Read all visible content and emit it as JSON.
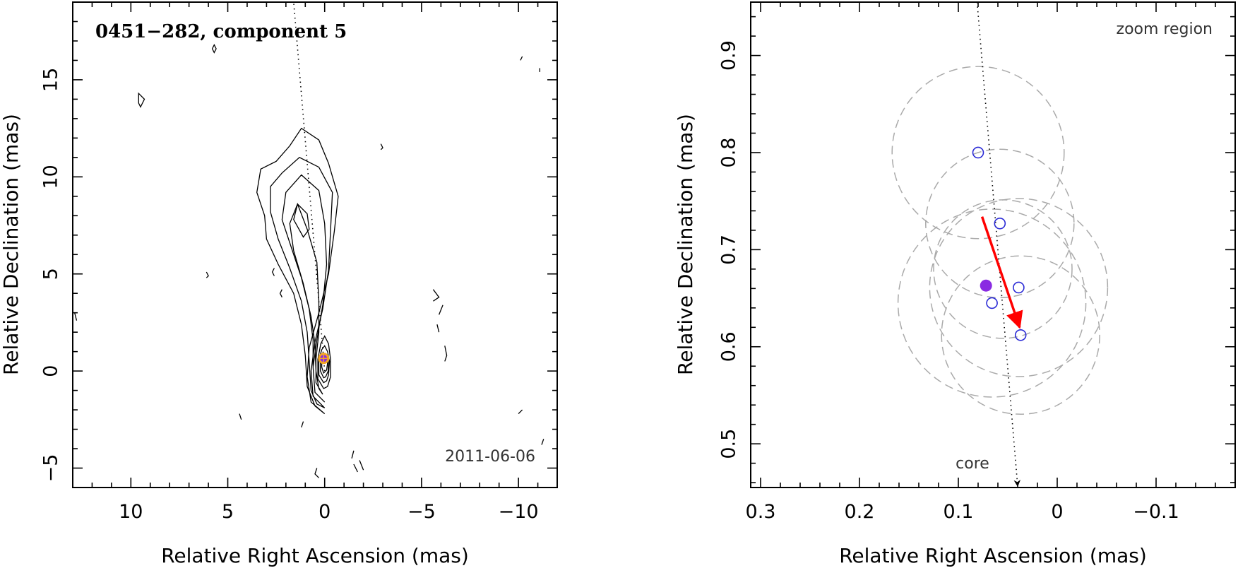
{
  "chart_data": [
    {
      "type": "contour",
      "title": "0451−282, component 5",
      "epoch": "2011-06-06",
      "xlabel": "Relative Right Ascension (mas)",
      "ylabel": "Relative Declination (mas)",
      "xlim": [
        13,
        -12
      ],
      "ylim": [
        -6,
        19
      ],
      "x_axis_reversed": true,
      "xticks": [
        10,
        5,
        0,
        -5,
        -10
      ],
      "xtick_labels": [
        "10",
        "5",
        "0",
        "−5",
        "−10"
      ],
      "yticks": [
        -5,
        0,
        5,
        10,
        15
      ],
      "ytick_labels": [
        "−5",
        "0",
        "5",
        "10",
        "15"
      ],
      "jet_axis": [
        [
          0,
          0
        ],
        [
          1.6,
          19
        ]
      ],
      "component_marker": {
        "x": 0.05,
        "y": 0.65,
        "colors": [
          "#f5a623",
          "#8a2be2"
        ]
      },
      "contours": [
        [
          [
            0.0,
            -2.2
          ],
          [
            0.7,
            -1.6
          ],
          [
            0.9,
            -0.3
          ],
          [
            0.8,
            1.2
          ],
          [
            0.3,
            3.0
          ],
          [
            -0.2,
            5.0
          ],
          [
            -0.5,
            7.2
          ],
          [
            -0.7,
            9.0
          ],
          [
            -0.2,
            10.7
          ],
          [
            0.3,
            11.9
          ],
          [
            1.2,
            12.5
          ],
          [
            1.8,
            11.6
          ],
          [
            2.5,
            10.8
          ],
          [
            3.3,
            10.4
          ],
          [
            3.5,
            9.2
          ],
          [
            3.1,
            8.0
          ],
          [
            3.0,
            6.8
          ],
          [
            2.4,
            5.5
          ],
          [
            1.6,
            4.0
          ],
          [
            1.2,
            2.4
          ],
          [
            1.0,
            0.8
          ],
          [
            0.9,
            -0.8
          ],
          [
            0.5,
            -1.8
          ]
        ],
        [
          [
            0.0,
            -1.9
          ],
          [
            0.6,
            -1.3
          ],
          [
            0.7,
            0.0
          ],
          [
            0.5,
            1.5
          ],
          [
            0.1,
            3.2
          ],
          [
            -0.2,
            5.2
          ],
          [
            -0.3,
            7.2
          ],
          [
            -0.4,
            9.2
          ],
          [
            0.3,
            10.5
          ],
          [
            1.3,
            11.0
          ],
          [
            2.2,
            10.2
          ],
          [
            2.8,
            9.5
          ],
          [
            2.8,
            8.2
          ],
          [
            2.4,
            6.8
          ],
          [
            1.8,
            5.3
          ],
          [
            1.2,
            3.6
          ],
          [
            0.9,
            2.0
          ],
          [
            0.8,
            0.5
          ],
          [
            0.7,
            -1.0
          ],
          [
            0.4,
            -1.7
          ]
        ],
        [
          [
            0.0,
            -1.6
          ],
          [
            0.5,
            -1.1
          ],
          [
            0.6,
            0.2
          ],
          [
            0.4,
            1.6
          ],
          [
            0.1,
            3.4
          ],
          [
            -0.1,
            5.5
          ],
          [
            0.0,
            7.6
          ],
          [
            0.3,
            9.3
          ],
          [
            1.2,
            10.1
          ],
          [
            2.0,
            9.2
          ],
          [
            2.2,
            7.8
          ],
          [
            1.7,
            6.3
          ],
          [
            1.2,
            4.8
          ],
          [
            0.8,
            3.2
          ],
          [
            0.6,
            1.6
          ],
          [
            0.6,
            0.2
          ],
          [
            0.5,
            -1.1
          ]
        ],
        [
          [
            0.1,
            -1.2
          ],
          [
            0.45,
            -0.6
          ],
          [
            0.45,
            0.6
          ],
          [
            0.3,
            2.0
          ],
          [
            0.3,
            3.6
          ],
          [
            0.4,
            5.6
          ],
          [
            0.9,
            7.3
          ],
          [
            1.4,
            8.6
          ],
          [
            1.8,
            7.6
          ],
          [
            1.6,
            6.2
          ],
          [
            1.1,
            4.5
          ],
          [
            0.7,
            2.8
          ],
          [
            0.5,
            1.4
          ],
          [
            0.45,
            0.0
          ],
          [
            0.3,
            -0.9
          ]
        ],
        [
          [
            1.1,
            6.9
          ],
          [
            1.6,
            7.8
          ],
          [
            1.4,
            8.6
          ],
          [
            0.9,
            8.1
          ],
          [
            0.8,
            7.3
          ]
        ],
        [
          [
            0.05,
            -0.9
          ],
          [
            0.35,
            -0.4
          ],
          [
            0.35,
            0.6
          ],
          [
            0.2,
            1.4
          ],
          [
            0.0,
            1.8
          ],
          [
            -0.2,
            1.4
          ],
          [
            -0.3,
            0.6
          ],
          [
            -0.3,
            -0.3
          ],
          [
            -0.15,
            -0.8
          ]
        ],
        [
          [
            0.05,
            -0.6
          ],
          [
            0.3,
            -0.2
          ],
          [
            0.3,
            0.6
          ],
          [
            0.15,
            1.1
          ],
          [
            0.0,
            1.3
          ],
          [
            -0.15,
            1.0
          ],
          [
            -0.25,
            0.5
          ],
          [
            -0.2,
            -0.2
          ],
          [
            -0.1,
            -0.5
          ]
        ],
        [
          [
            0.05,
            -0.35
          ],
          [
            0.22,
            0.0
          ],
          [
            0.22,
            0.6
          ],
          [
            0.1,
            0.9
          ],
          [
            -0.05,
            0.9
          ],
          [
            -0.2,
            0.6
          ],
          [
            -0.18,
            0.0
          ],
          [
            -0.05,
            -0.3
          ]
        ],
        [
          [
            0.05,
            -0.1
          ],
          [
            0.15,
            0.2
          ],
          [
            0.15,
            0.6
          ],
          [
            0.05,
            0.75
          ],
          [
            -0.1,
            0.7
          ],
          [
            -0.15,
            0.4
          ],
          [
            -0.1,
            0.05
          ]
        ],
        [
          [
            9.6,
            14.3
          ],
          [
            9.3,
            14.0
          ],
          [
            9.5,
            13.6
          ],
          [
            9.6,
            13.8
          ]
        ],
        [
          [
            5.7,
            16.8
          ],
          [
            5.8,
            16.6
          ],
          [
            5.7,
            16.4
          ],
          [
            5.6,
            16.6
          ]
        ],
        [
          [
            -10.2,
            16.2
          ],
          [
            -10.1,
            16.0
          ]
        ],
        [
          [
            -11.1,
            15.6
          ],
          [
            -11.1,
            15.4
          ]
        ],
        [
          [
            -2.9,
            11.7
          ],
          [
            -3.0,
            11.5
          ],
          [
            -2.9,
            11.4
          ]
        ],
        [
          [
            6.1,
            5.1
          ],
          [
            6.0,
            4.9
          ],
          [
            6.1,
            4.8
          ]
        ],
        [
          [
            2.6,
            5.3
          ],
          [
            2.7,
            5.1
          ],
          [
            2.6,
            4.9
          ]
        ],
        [
          [
            2.2,
            4.2
          ],
          [
            2.3,
            4.0
          ],
          [
            2.2,
            3.8
          ]
        ],
        [
          [
            -5.6,
            4.2
          ],
          [
            -5.9,
            3.8
          ],
          [
            -5.6,
            3.6
          ]
        ],
        [
          [
            -6.1,
            3.4
          ],
          [
            -5.9,
            2.9
          ]
        ],
        [
          [
            -5.8,
            2.4
          ],
          [
            -5.9,
            2.0
          ]
        ],
        [
          [
            -6.2,
            1.3
          ],
          [
            -6.3,
            0.8
          ],
          [
            -6.2,
            0.5
          ]
        ],
        [
          [
            12.9,
            3.0
          ],
          [
            12.8,
            2.6
          ]
        ],
        [
          [
            4.4,
            -2.2
          ],
          [
            4.3,
            -2.5
          ]
        ],
        [
          [
            1.1,
            -2.6
          ],
          [
            1.2,
            -2.9
          ]
        ],
        [
          [
            -10.2,
            -2.0
          ],
          [
            -10.0,
            -2.2
          ]
        ],
        [
          [
            -11.3,
            -3.5
          ],
          [
            -11.2,
            -3.8
          ]
        ],
        [
          [
            -1.5,
            -4.1
          ],
          [
            -1.4,
            -4.5
          ]
        ],
        [
          [
            -1.5,
            -4.8
          ],
          [
            -1.7,
            -5.2
          ]
        ],
        [
          [
            -1.8,
            -4.6
          ],
          [
            -2.0,
            -5.1
          ]
        ],
        [
          [
            0.4,
            -5.0
          ],
          [
            0.5,
            -5.3
          ],
          [
            0.3,
            -5.5
          ]
        ]
      ]
    },
    {
      "type": "scatter",
      "annotation": "zoom region",
      "core_label": "core",
      "xlabel": "Relative Right Ascension (mas)",
      "ylabel": "Relative Declination (mas)",
      "xlim": [
        0.31,
        -0.18
      ],
      "ylim": [
        0.455,
        0.955
      ],
      "x_axis_reversed": true,
      "xticks": [
        0.3,
        0.2,
        0.1,
        0,
        -0.1
      ],
      "xtick_labels": [
        "0.3",
        "0.2",
        "0.1",
        "0",
        "−0.1"
      ],
      "yticks": [
        0.5,
        0.6,
        0.7,
        0.8,
        0.9
      ],
      "ytick_labels": [
        "0.5",
        "0.6",
        "0.7",
        "0.8",
        "0.9"
      ],
      "jet_axis": [
        [
          0.081,
          0.955
        ],
        [
          0.04,
          0.455
        ]
      ],
      "core_arrow_tip": {
        "x": 0.04,
        "y": 0.455
      },
      "positions": [
        {
          "x": 0.08,
          "y": 0.8
        },
        {
          "x": 0.058,
          "y": 0.727
        },
        {
          "x": 0.039,
          "y": 0.661
        },
        {
          "x": 0.066,
          "y": 0.645
        },
        {
          "x": 0.037,
          "y": 0.612
        }
      ],
      "mean_position": {
        "x": 0.072,
        "y": 0.663,
        "color": "#8a2be2"
      },
      "motion_vector": {
        "from": [
          0.076,
          0.734
        ],
        "to": [
          0.038,
          0.62
        ],
        "color": "#ff0000"
      },
      "uncertainty_circles": [
        {
          "x": 0.08,
          "y": 0.8,
          "r": 0.087
        },
        {
          "x": 0.058,
          "y": 0.727,
          "r": 0.075
        },
        {
          "x": 0.039,
          "y": 0.661,
          "r": 0.09
        },
        {
          "x": 0.066,
          "y": 0.645,
          "r": 0.095
        },
        {
          "x": 0.037,
          "y": 0.612,
          "r": 0.08
        },
        {
          "x": 0.055,
          "y": 0.68,
          "r": 0.07
        }
      ]
    }
  ]
}
